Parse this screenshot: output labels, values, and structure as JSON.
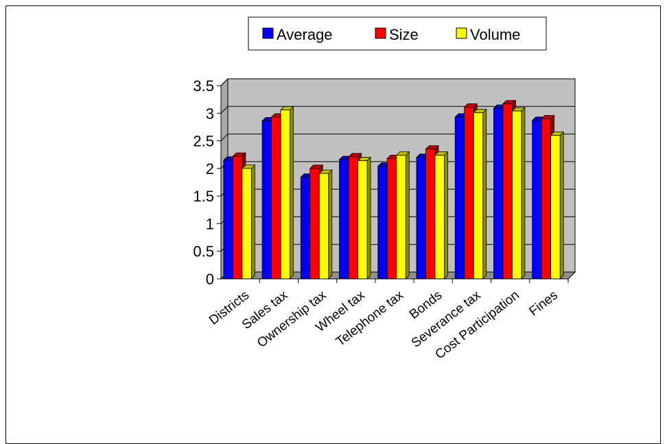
{
  "chart_data": {
    "type": "bar",
    "categories": [
      "Districts",
      "Sales tax",
      "Ownership tax",
      "Wheel tax",
      "Telephone tax",
      "Bonds",
      "Severance tax",
      "Cost Participation",
      "Fines"
    ],
    "series": [
      {
        "name": "Average",
        "color": "#0000ff",
        "values": [
          2.15,
          2.86,
          1.84,
          2.16,
          2.04,
          2.2,
          2.93,
          3.09,
          2.87
        ]
      },
      {
        "name": "Size",
        "color": "#ff0000",
        "values": [
          2.22,
          2.93,
          2.0,
          2.21,
          2.18,
          2.35,
          3.11,
          3.17,
          2.9
        ]
      },
      {
        "name": "Volume",
        "color": "#ffff00",
        "values": [
          2.0,
          3.06,
          1.91,
          2.14,
          2.24,
          2.24,
          3.01,
          3.04,
          2.6
        ]
      }
    ],
    "ylim": [
      0,
      3.5
    ],
    "yticks": [
      "0",
      "0.5",
      "1",
      "1.5",
      "2",
      "2.5",
      "3",
      "3.5"
    ],
    "grid": true,
    "legend_position": "top",
    "plot_background": "#c0c0c0"
  }
}
